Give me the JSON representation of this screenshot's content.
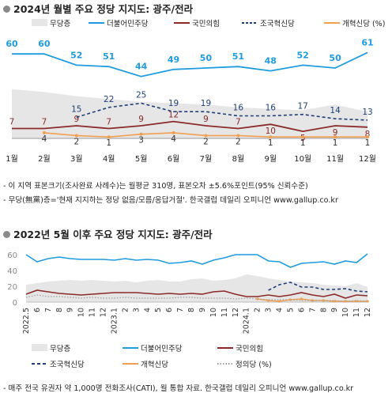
{
  "titles": {
    "top": "2024년 월별 주요 정당 지지도: 광주/전라",
    "bottom": "2022년 5월 이후 주요 정당 지지도: 광주/전라"
  },
  "notes": {
    "n1": "- 이 지역 표본크기(조사완료 사례수)는 월평균 310명, 표본오차 ±5.6%포인트(95% 신뢰수준)",
    "n2": "- 무당(無黨)층='현재 지지하는 정당 없음/모름/응답거절'. 한국갤럽 데일리 오피니언 www.gallup.co.kr",
    "footer": "- 매주 전국 유권자 약 1,000명 전화조사(CATI), 월 통합 자료. 한국갤럽 데일리 오피니언 www.gallup.co.kr"
  },
  "colors": {
    "minjoo": "#1f9be0",
    "ppp": "#8b2a2a",
    "rebuild": "#1f3f7a",
    "reform": "#f0a050",
    "justice": "#a0a0a0",
    "none_area": "#e6e6e6"
  },
  "chart_data": [
    {
      "type": "line",
      "categories": [
        "1월",
        "2월",
        "3월",
        "4월",
        "5월",
        "6월",
        "7월",
        "8월",
        "9월",
        "10월",
        "11월",
        "12월"
      ],
      "legend": [
        "무당층",
        "더불어민주당",
        "국민의힘",
        "조국혁신당",
        "개혁신당 (%)"
      ],
      "area": {
        "name": "무당층",
        "values": [
          35,
          33,
          30,
          28,
          26,
          25,
          24,
          22,
          21,
          20,
          24,
          19
        ]
      },
      "series": [
        {
          "name": "더불어민주당",
          "values": [
            60,
            60,
            52,
            51,
            44,
            49,
            50,
            51,
            48,
            52,
            50,
            61
          ]
        },
        {
          "name": "국민의힘",
          "values": [
            7,
            7,
            9,
            7,
            9,
            12,
            9,
            7,
            10,
            5,
            9,
            8
          ]
        },
        {
          "name": "조국혁신당",
          "values": [
            null,
            null,
            15,
            22,
            25,
            19,
            19,
            16,
            16,
            17,
            14,
            13
          ]
        },
        {
          "name": "개혁신당 (%)",
          "values": [
            null,
            4,
            2,
            1,
            3,
            4,
            2,
            2,
            1,
            1,
            1,
            1
          ]
        }
      ]
    },
    {
      "type": "line",
      "x_labels": [
        "2022.5",
        "6",
        "7",
        "8",
        "9",
        "10",
        "11",
        "12",
        "2023.1",
        "2",
        "3",
        "4",
        "5",
        "6",
        "7",
        "8",
        "9",
        "10",
        "11",
        "12",
        "2024.1",
        "2",
        "3",
        "4",
        "5",
        "6",
        "7",
        "8",
        "9",
        "10",
        "11",
        "12"
      ],
      "yticks": [
        60,
        40,
        20,
        0
      ],
      "legend": [
        "무당층",
        "더불어민주당",
        "국민의힘",
        "조국혁신당",
        "개혁신당",
        "정의당 (%)"
      ],
      "area": {
        "name": "무당층",
        "values": [
          22,
          24,
          26,
          27,
          28,
          27,
          28,
          27,
          26,
          27,
          25,
          27,
          28,
          26,
          26,
          29,
          30,
          27,
          28,
          30,
          35,
          33,
          30,
          28,
          26,
          25,
          24,
          22,
          21,
          20,
          24,
          19
        ]
      },
      "series": [
        {
          "name": "더불어민주당",
          "values": [
            60,
            51,
            55,
            57,
            55,
            54,
            54,
            54,
            53,
            55,
            53,
            54,
            53,
            49,
            50,
            52,
            48,
            53,
            56,
            60,
            60,
            60,
            52,
            51,
            44,
            49,
            50,
            51,
            48,
            52,
            50,
            61
          ]
        },
        {
          "name": "국민의힘",
          "values": [
            10,
            15,
            13,
            11,
            10,
            9,
            10,
            11,
            12,
            12,
            12,
            11,
            10,
            11,
            10,
            11,
            10,
            13,
            14,
            10,
            7,
            7,
            9,
            7,
            9,
            12,
            9,
            7,
            10,
            5,
            9,
            8
          ]
        },
        {
          "name": "조국혁신당",
          "values": [
            null,
            null,
            null,
            null,
            null,
            null,
            null,
            null,
            null,
            null,
            null,
            null,
            null,
            null,
            null,
            null,
            null,
            null,
            null,
            null,
            null,
            null,
            15,
            22,
            25,
            19,
            19,
            16,
            16,
            17,
            14,
            13
          ]
        },
        {
          "name": "개혁신당",
          "values": [
            null,
            null,
            null,
            null,
            null,
            null,
            null,
            null,
            null,
            null,
            null,
            null,
            null,
            null,
            null,
            null,
            null,
            null,
            null,
            null,
            null,
            4,
            2,
            1,
            3,
            4,
            2,
            2,
            1,
            1,
            1,
            1
          ]
        },
        {
          "name": "정의당 (%)",
          "values": [
            6,
            9,
            7,
            7,
            6,
            5,
            6,
            5,
            5,
            6,
            5,
            5,
            5,
            5,
            6,
            6,
            5,
            5,
            5,
            4,
            5,
            4,
            3,
            3,
            3,
            2,
            2,
            2,
            2,
            1,
            2,
            1
          ]
        }
      ]
    }
  ]
}
